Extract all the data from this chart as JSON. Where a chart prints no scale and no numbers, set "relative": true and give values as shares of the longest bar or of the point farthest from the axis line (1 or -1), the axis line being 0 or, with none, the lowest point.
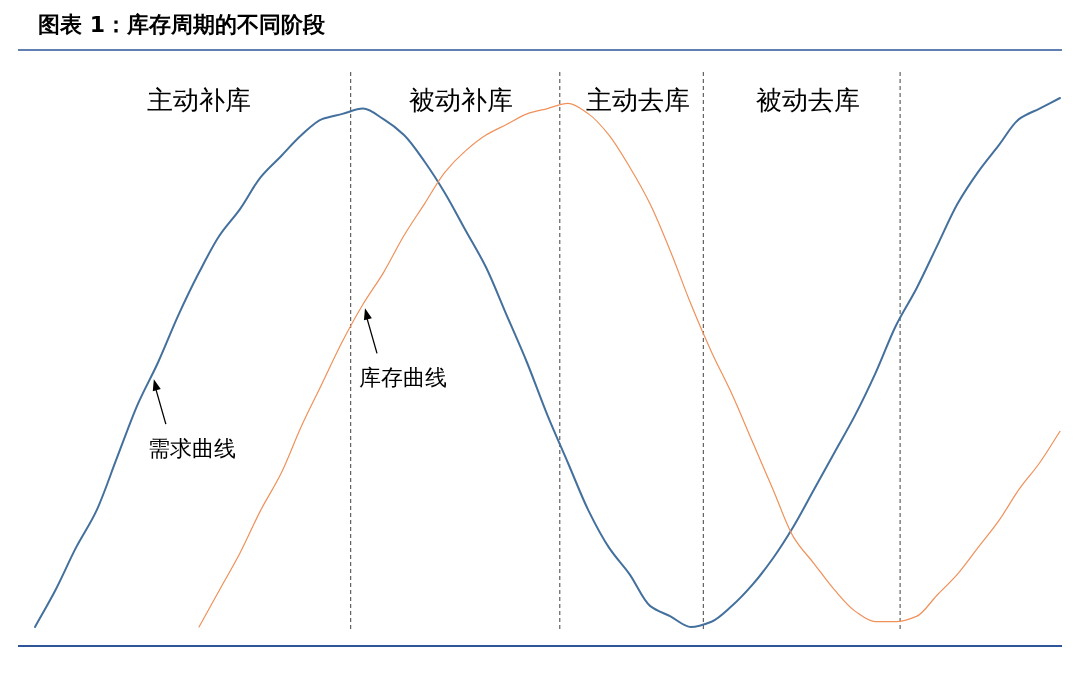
{
  "chart_data": {
    "type": "line",
    "title": "图表 1：库存周期的不同阶段",
    "relative": true,
    "categories": [
      null,
      null,
      null,
      null,
      null,
      null,
      null,
      null,
      null,
      null,
      null,
      null,
      null,
      null,
      null,
      null,
      null,
      null,
      null,
      null,
      null,
      null,
      null,
      null,
      null,
      null,
      null,
      null,
      null,
      null,
      null,
      null,
      null,
      null,
      null,
      null,
      null,
      null,
      null,
      null,
      null,
      null,
      null,
      null,
      null,
      null,
      null,
      null,
      null,
      null,
      null
    ],
    "series": [
      {
        "color": "#44709d",
        "values": [
          0.0,
          0.07,
          0.15,
          0.22,
          0.32,
          0.42,
          0.5,
          0.59,
          0.67,
          0.74,
          0.79,
          0.85,
          0.89,
          0.93,
          0.96,
          0.97,
          0.98,
          0.96,
          0.93,
          0.88,
          0.82,
          0.75,
          0.68,
          0.59,
          0.5,
          0.4,
          0.31,
          0.22,
          0.15,
          0.1,
          0.04,
          0.02,
          0.0,
          0.01,
          0.04,
          0.08,
          0.13,
          0.19,
          0.26,
          0.33,
          0.4,
          0.48,
          0.57,
          0.64,
          0.72,
          0.8,
          0.86,
          0.91,
          0.96,
          0.98,
          1.0
        ]
      },
      {
        "color": "#f0915a",
        "values": [
          null,
          null,
          null,
          null,
          null,
          null,
          null,
          null,
          0.0,
          0.07,
          0.14,
          0.22,
          0.29,
          0.38,
          0.46,
          0.54,
          0.61,
          0.67,
          0.74,
          0.8,
          0.86,
          0.9,
          0.93,
          0.95,
          0.97,
          0.98,
          0.99,
          0.97,
          0.93,
          0.87,
          0.8,
          0.71,
          0.61,
          0.52,
          0.44,
          0.35,
          0.26,
          0.17,
          0.12,
          0.07,
          0.03,
          0.01,
          0.01,
          0.02,
          0.06,
          0.1,
          0.15,
          0.2,
          0.26,
          0.31,
          0.37
        ]
      }
    ],
    "annotations": [
      "主动补库",
      "被动补库",
      "主动去库",
      "被动去库",
      "需求曲线",
      "库存曲线"
    ]
  }
}
